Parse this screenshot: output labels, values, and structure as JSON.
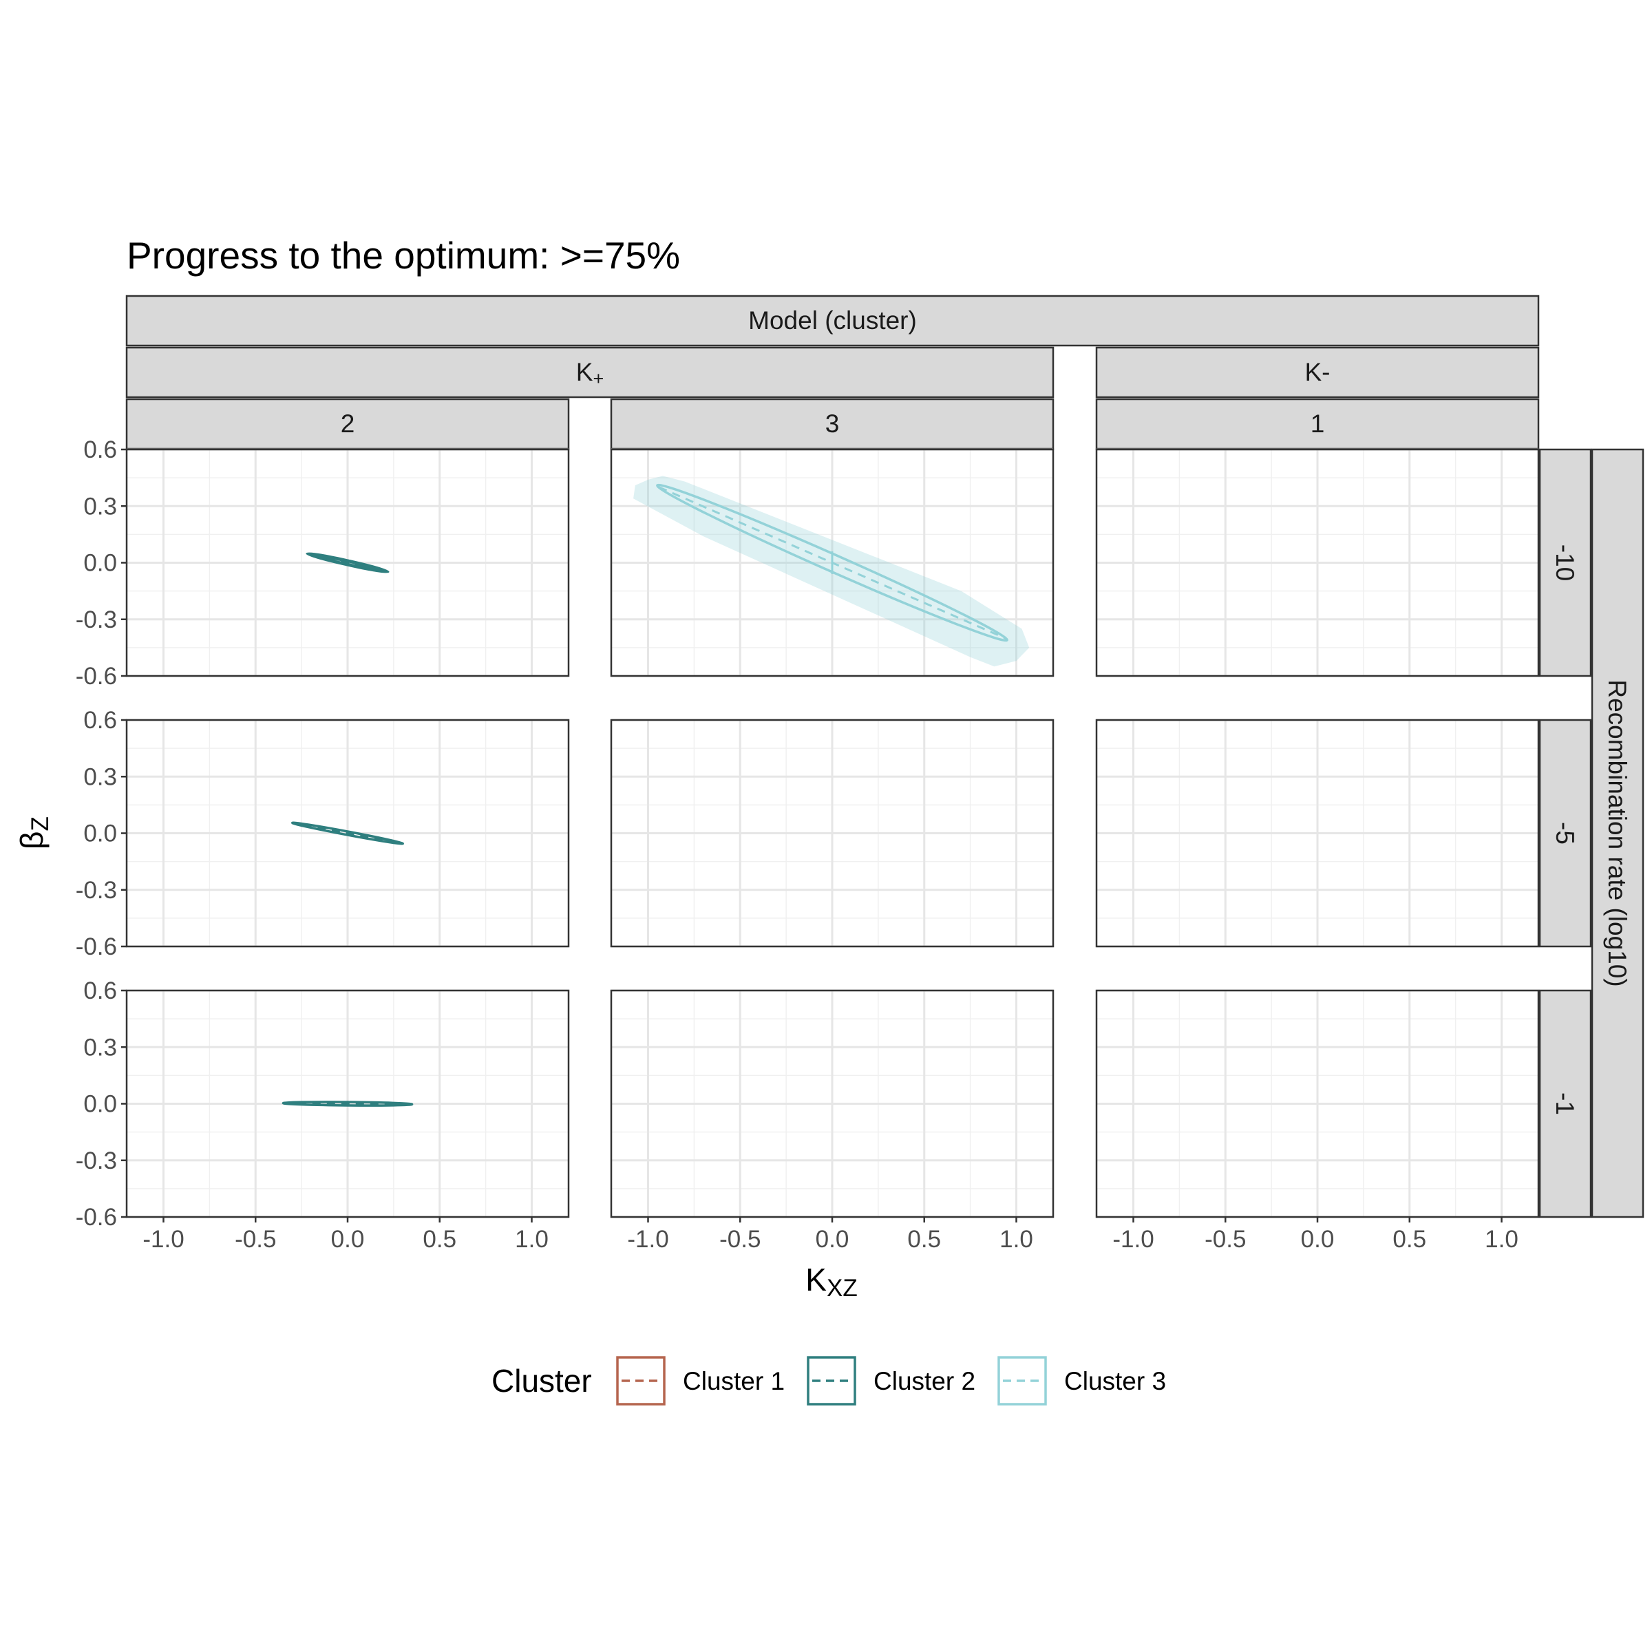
{
  "chart_data": {
    "type": "scatter",
    "title": "Progress to the optimum: >=75%",
    "xlabel": "K",
    "xlabel_sub": "XZ",
    "ylabel": "β",
    "ylabel_sub": "Z",
    "xlim": [
      -1.2,
      1.2
    ],
    "ylim": [
      -0.6,
      0.6
    ],
    "x_ticks": [
      -1.0,
      -0.5,
      0.0,
      0.5,
      1.0
    ],
    "x_tick_labels": [
      "-1.0",
      "-0.5",
      "0.0",
      "0.5",
      "1.0"
    ],
    "y_ticks": [
      0.6,
      0.3,
      0.0,
      -0.3,
      -0.6
    ],
    "y_tick_labels": [
      "0.6",
      "0.3",
      "0.0",
      "-0.3",
      "-0.6"
    ],
    "grid": true,
    "top_strip_label": "Model (cluster)",
    "model_groups": [
      {
        "label": "K",
        "label_sub": "+",
        "clusters": [
          "2",
          "3"
        ]
      },
      {
        "label": "K-",
        "label_sub": "",
        "clusters": [
          "1"
        ]
      }
    ],
    "column_labels": [
      "2",
      "3",
      "1"
    ],
    "row_strip_title": "Recombination rate (log10)",
    "row_labels": [
      "-10",
      "-5",
      "-1"
    ],
    "legend": {
      "title": "Cluster",
      "position": "bottom",
      "entries": [
        {
          "label": "Cluster 1",
          "color": "#b5654e"
        },
        {
          "label": "Cluster 2",
          "color": "#2f7f7f"
        },
        {
          "label": "Cluster 3",
          "color": "#93d2d8"
        }
      ]
    },
    "series": [
      {
        "cluster": "Cluster 2",
        "row": 0,
        "col": 0,
        "color": "#2f7f7f",
        "center": [
          0.0,
          0.0
        ],
        "line": [
          [
            -0.19,
            0.04
          ],
          [
            0.19,
            -0.04
          ]
        ],
        "ellipses": [
          {
            "x1": -0.22,
            "y1": 0.048,
            "x2": 0.22,
            "y2": -0.048,
            "minor": 0.012
          },
          {
            "x1": -0.19,
            "y1": 0.04,
            "x2": 0.19,
            "y2": -0.04,
            "minor": 0.007
          }
        ],
        "cross": {
          "x": 0.0,
          "dy": 0.018
        },
        "ribbon": null
      },
      {
        "cluster": "Cluster 2",
        "row": 1,
        "col": 0,
        "color": "#2f7f7f",
        "center": [
          0.0,
          0.0
        ],
        "line": [
          [
            -0.24,
            0.045
          ],
          [
            0.24,
            -0.045
          ]
        ],
        "ellipses": [
          {
            "x1": -0.3,
            "y1": 0.055,
            "x2": 0.3,
            "y2": -0.055,
            "minor": 0.009
          }
        ],
        "cross": null,
        "ribbon": null
      },
      {
        "cluster": "Cluster 2",
        "row": 2,
        "col": 0,
        "color": "#2f7f7f",
        "center": [
          0.0,
          0.0
        ],
        "line": [
          [
            -0.27,
            0.002
          ],
          [
            0.27,
            -0.002
          ]
        ],
        "ellipses": [
          {
            "x1": -0.35,
            "y1": 0.003,
            "x2": 0.35,
            "y2": -0.003,
            "minor": 0.009
          }
        ],
        "cross": null,
        "ribbon": null
      },
      {
        "cluster": "Cluster 3",
        "row": 0,
        "col": 1,
        "color": "#93d2d8",
        "center": [
          0.0,
          0.0
        ],
        "line": [
          [
            -0.94,
            0.4
          ],
          [
            0.94,
            -0.4
          ]
        ],
        "ellipses": [
          {
            "x1": -0.95,
            "y1": 0.41,
            "x2": 0.95,
            "y2": -0.41,
            "minor": 0.045
          }
        ],
        "cross": {
          "x": 0.0,
          "dy": 0.06
        },
        "ribbon": [
          [
            -1.0,
            0.44
          ],
          [
            -0.92,
            0.46
          ],
          [
            -0.8,
            0.43
          ],
          [
            0.7,
            -0.15
          ],
          [
            1.03,
            -0.35
          ],
          [
            1.07,
            -0.45
          ],
          [
            1.0,
            -0.52
          ],
          [
            0.88,
            -0.55
          ],
          [
            0.75,
            -0.5
          ],
          [
            -0.7,
            0.14
          ],
          [
            -1.08,
            0.34
          ],
          [
            -1.07,
            0.41
          ]
        ]
      }
    ]
  }
}
